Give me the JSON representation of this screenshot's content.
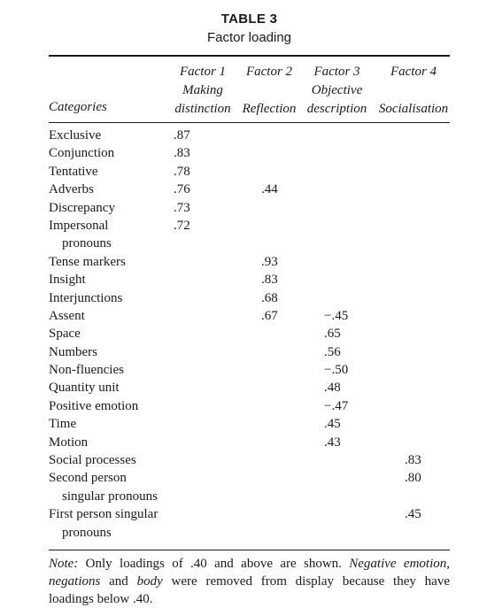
{
  "table_label": "TABLE 3",
  "table_title": "Factor loading",
  "headers": {
    "category": "Categories",
    "factor1": [
      "Factor 1",
      "Making",
      "distinction"
    ],
    "factor2": [
      "Factor 2",
      "Reflection"
    ],
    "factor3": [
      "Factor 3",
      "Objective",
      "description"
    ],
    "factor4": [
      "Factor 4",
      "Socialisation"
    ]
  },
  "rows": [
    {
      "category": "Exclusive",
      "values": [
        ".87",
        "",
        "",
        ""
      ]
    },
    {
      "category": "Conjunction",
      "values": [
        ".83",
        "",
        "",
        ""
      ]
    },
    {
      "category": "Tentative",
      "values": [
        ".78",
        "",
        "",
        ""
      ]
    },
    {
      "category": "Adverbs",
      "values": [
        ".76",
        ".44",
        "",
        ""
      ]
    },
    {
      "category": "Discrepancy",
      "values": [
        ".73",
        "",
        "",
        ""
      ]
    },
    {
      "category": "Impersonal",
      "values": [
        ".72",
        "",
        "",
        ""
      ]
    },
    {
      "category": "pronouns",
      "values": [
        "",
        "",
        "",
        ""
      ],
      "continuation": true
    },
    {
      "category": "Tense markers",
      "values": [
        "",
        ".93",
        "",
        ""
      ]
    },
    {
      "category": "Insight",
      "values": [
        "",
        ".83",
        "",
        ""
      ]
    },
    {
      "category": "Interjunctions",
      "values": [
        "",
        ".68",
        "",
        ""
      ]
    },
    {
      "category": "Assent",
      "values": [
        "",
        ".67",
        "−.45",
        ""
      ]
    },
    {
      "category": "Space",
      "values": [
        "",
        "",
        ".65",
        ""
      ]
    },
    {
      "category": "Numbers",
      "values": [
        "",
        "",
        ".56",
        ""
      ]
    },
    {
      "category": "Non-fluencies",
      "values": [
        "",
        "",
        "−.50",
        ""
      ]
    },
    {
      "category": "Quantity unit",
      "values": [
        "",
        "",
        ".48",
        ""
      ]
    },
    {
      "category": "Positive emotion",
      "values": [
        "",
        "",
        "−.47",
        ""
      ]
    },
    {
      "category": "Time",
      "values": [
        "",
        "",
        ".45",
        ""
      ]
    },
    {
      "category": "Motion",
      "values": [
        "",
        "",
        ".43",
        ""
      ]
    },
    {
      "category": "Social processes",
      "values": [
        "",
        "",
        "",
        ".83"
      ]
    },
    {
      "category": "Second person",
      "values": [
        "",
        "",
        "",
        ".80"
      ]
    },
    {
      "category": "singular pronouns",
      "values": [
        "",
        "",
        "",
        ""
      ],
      "continuation": true
    },
    {
      "category": "First person singular",
      "values": [
        "",
        "",
        "",
        ".45"
      ]
    },
    {
      "category": "pronouns",
      "values": [
        "",
        "",
        "",
        ""
      ],
      "continuation": true
    }
  ],
  "note": {
    "label": "Note:",
    "text1": " Only loadings of .40 and above are shown. ",
    "em1": "Negative emotion",
    "text2": ", ",
    "em2": "negations",
    "text3": " and ",
    "em3": "body",
    "text4": " were removed from display because they have loadings below .40."
  }
}
